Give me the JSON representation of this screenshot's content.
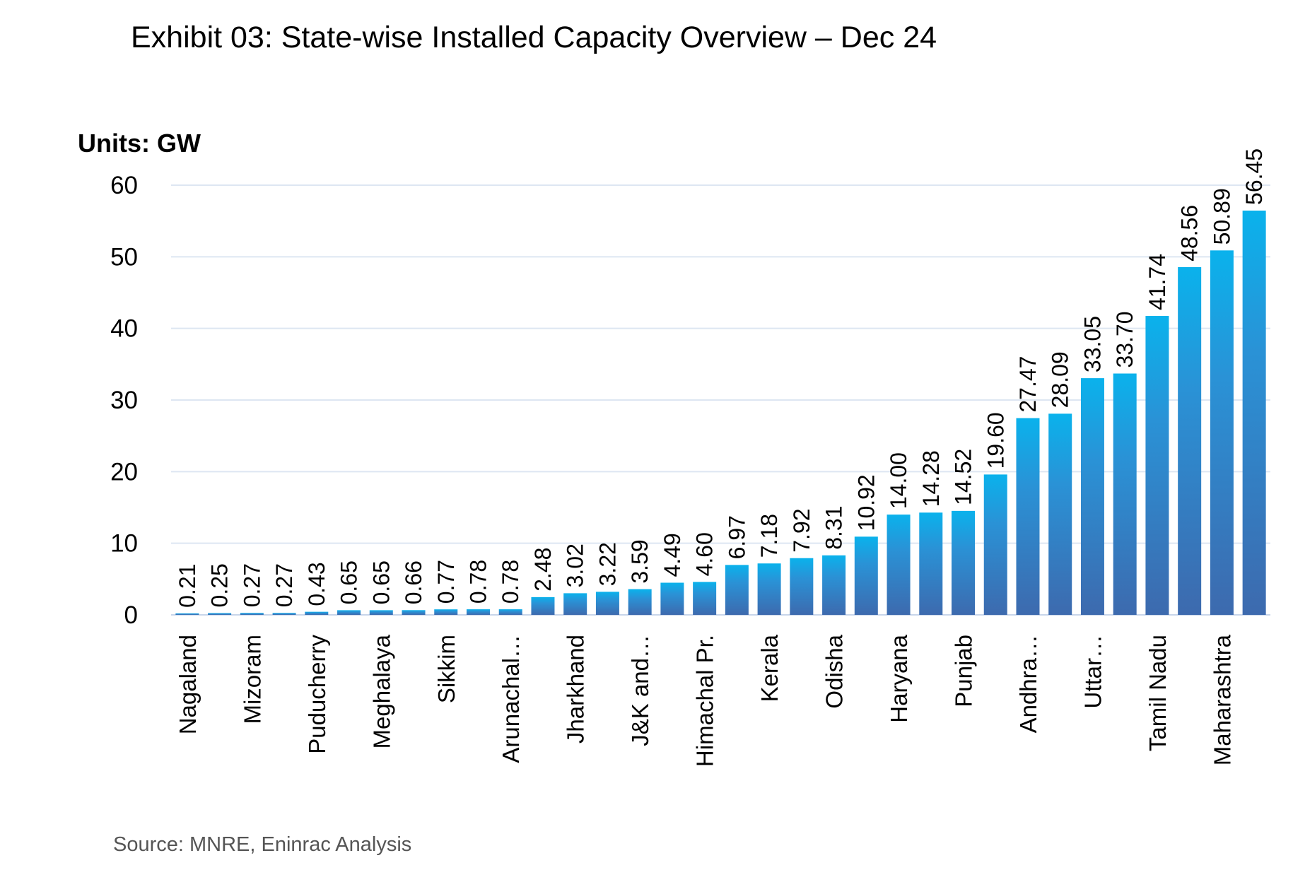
{
  "chart_data": {
    "type": "bar",
    "title": "Exhibit 03: State-wise Installed Capacity Overview – Dec 24",
    "ylabel": "Units: GW",
    "xlabel": "",
    "ylim": [
      0,
      60
    ],
    "yticks": [
      0,
      10,
      20,
      30,
      40,
      50,
      60
    ],
    "grid": true,
    "categories": [
      "Nagaland",
      "",
      "Mizoram",
      "",
      "Puducherry",
      "",
      "Meghalaya",
      "",
      "Sikkim",
      "",
      "Arunachal…",
      "",
      "Jharkhand",
      "",
      "J&K and…",
      "",
      "Himachal Pr.",
      "",
      "Kerala",
      "",
      "Odisha",
      "",
      "Haryana",
      "",
      "Punjab",
      "",
      "Andhra…",
      "",
      "Uttar…",
      "",
      "Tamil Nadu",
      "",
      "Maharashtra",
      ""
    ],
    "values": [
      0.21,
      0.25,
      0.27,
      0.27,
      0.43,
      0.65,
      0.65,
      0.66,
      0.77,
      0.78,
      0.78,
      2.48,
      3.02,
      3.22,
      3.59,
      4.49,
      4.6,
      6.97,
      7.18,
      7.92,
      8.31,
      10.92,
      14.0,
      14.28,
      14.52,
      19.6,
      27.47,
      28.09,
      33.05,
      33.7,
      41.74,
      48.56,
      50.89,
      56.45
    ],
    "data_labels": [
      "0.21",
      "0.25",
      "0.27",
      "0.27",
      "0.43",
      "0.65",
      "0.65",
      "0.66",
      "0.77",
      "0.78",
      "0.78",
      "2.48",
      "3.02",
      "3.22",
      "3.59",
      "4.49",
      "4.60",
      "6.97",
      "7.18",
      "7.92",
      "8.31",
      "10.92",
      "14.00",
      "14.28",
      "14.52",
      "19.60",
      "27.47",
      "28.09",
      "33.05",
      "33.70",
      "41.74",
      "48.56",
      "50.89",
      "56.45"
    ],
    "colors": {
      "bar_top": "#0ab2ec",
      "bar_bottom": "#3d6aae",
      "grid": "#dde6f2",
      "axis": "#c9d6ea"
    }
  },
  "source": "Source: MNRE, Eninrac Analysis"
}
